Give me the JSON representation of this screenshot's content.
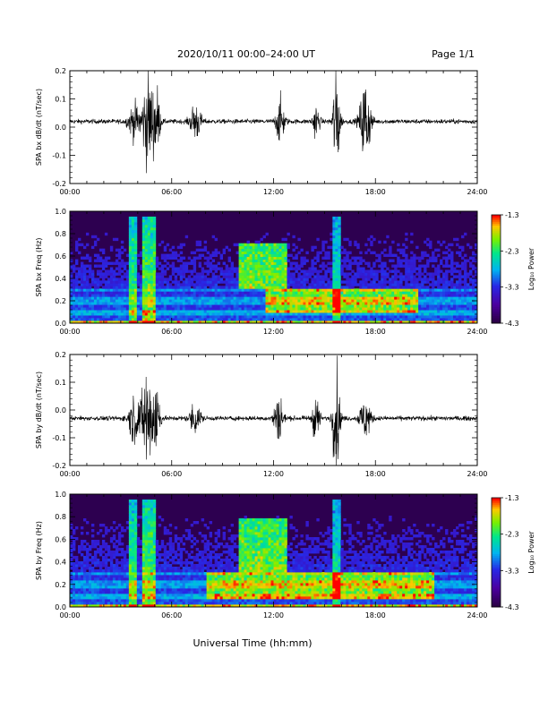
{
  "header": {
    "title": "2020/10/11  00:00–24:00 UT",
    "page": "Page 1/1"
  },
  "xlabel": "Universal Time (hh:mm)",
  "colorbar": {
    "label": "Log₁₀ Power",
    "ticks": [
      "-1.3",
      "-2.3",
      "-3.3",
      "-4.3"
    ],
    "range": [
      -4.3,
      -1.3
    ]
  },
  "chart_data": [
    {
      "type": "line",
      "ylabel": "SPA bx dB/dt (nT/sec)",
      "xlim": [
        0,
        24
      ],
      "ylim": [
        -0.2,
        0.2
      ],
      "xticks": [
        "00:00",
        "06:00",
        "12:00",
        "18:00",
        "24:00"
      ],
      "yticks": [
        "0.2",
        "0.1",
        "0.0",
        "-0.1",
        "-0.2"
      ],
      "baseline": 0.02,
      "noise": 0.008,
      "bursts": [
        {
          "t": 3.8,
          "amp": 0.06,
          "w": 0.35
        },
        {
          "t": 4.6,
          "amp": 0.16,
          "w": 0.35
        },
        {
          "t": 5.1,
          "amp": 0.12,
          "w": 0.2
        },
        {
          "t": 7.4,
          "amp": 0.07,
          "w": 0.3
        },
        {
          "t": 12.4,
          "amp": 0.08,
          "w": 0.25
        },
        {
          "t": 14.5,
          "amp": 0.06,
          "w": 0.2
        },
        {
          "t": 15.7,
          "amp": 0.2,
          "w": 0.2
        },
        {
          "t": 17.4,
          "amp": 0.16,
          "w": 0.3
        }
      ]
    },
    {
      "type": "heatmap",
      "ylabel": "SPA bx Freq (Hz)",
      "xlim": [
        0,
        24
      ],
      "ylim": [
        0,
        1.0
      ],
      "xticks": [
        "00:00",
        "06:00",
        "12:00",
        "18:00",
        "24:00"
      ],
      "yticks": [
        "1.0",
        "0.8",
        "0.6",
        "0.4",
        "0.2",
        "0.0"
      ],
      "features": [
        {
          "t0": 3.5,
          "t1": 4.0,
          "f0": 0.0,
          "f1": 0.95,
          "level": 0.45
        },
        {
          "t0": 4.3,
          "t1": 5.0,
          "f0": 0.0,
          "f1": 0.95,
          "level": 0.5
        },
        {
          "t0": 10.0,
          "t1": 12.8,
          "f0": 0.3,
          "f1": 0.72,
          "level": 0.55
        },
        {
          "t0": 11.5,
          "t1": 20.5,
          "f0": 0.1,
          "f1": 0.3,
          "level": 0.5
        },
        {
          "t0": 0.0,
          "t1": 24.0,
          "f0": 0.0,
          "f1": 0.03,
          "level": 0.6
        },
        {
          "t0": 15.5,
          "t1": 16.0,
          "f0": 0.0,
          "f1": 0.95,
          "level": 0.35
        }
      ]
    },
    {
      "type": "line",
      "ylabel": "SPA by dB/dt (nT/sec)",
      "xlim": [
        0,
        24
      ],
      "ylim": [
        -0.2,
        0.2
      ],
      "xticks": [
        "00:00",
        "06:00",
        "12:00",
        "18:00",
        "24:00"
      ],
      "yticks": [
        "0.2",
        "0.1",
        "0.0",
        "-0.1",
        "-0.2"
      ],
      "baseline": -0.03,
      "noise": 0.008,
      "bursts": [
        {
          "t": 3.8,
          "amp": 0.08,
          "w": 0.35
        },
        {
          "t": 4.6,
          "amp": 0.2,
          "w": 0.35
        },
        {
          "t": 5.1,
          "amp": 0.15,
          "w": 0.2
        },
        {
          "t": 7.4,
          "amp": 0.06,
          "w": 0.3
        },
        {
          "t": 12.3,
          "amp": 0.1,
          "w": 0.25
        },
        {
          "t": 14.5,
          "amp": 0.08,
          "w": 0.2
        },
        {
          "t": 15.7,
          "amp": 0.2,
          "w": 0.2
        },
        {
          "t": 17.4,
          "amp": 0.08,
          "w": 0.3
        }
      ]
    },
    {
      "type": "heatmap",
      "ylabel": "SPA by Freq (Hz)",
      "xlim": [
        0,
        24
      ],
      "ylim": [
        0,
        1.0
      ],
      "xticks": [
        "00:00",
        "06:00",
        "12:00",
        "18:00",
        "24:00"
      ],
      "yticks": [
        "1.0",
        "0.8",
        "0.6",
        "0.4",
        "0.2",
        "0.0"
      ],
      "features": [
        {
          "t0": 3.5,
          "t1": 4.0,
          "f0": 0.0,
          "f1": 0.95,
          "level": 0.45
        },
        {
          "t0": 4.3,
          "t1": 5.0,
          "f0": 0.0,
          "f1": 0.95,
          "level": 0.5
        },
        {
          "t0": 10.0,
          "t1": 12.8,
          "f0": 0.3,
          "f1": 0.78,
          "level": 0.55
        },
        {
          "t0": 8.0,
          "t1": 21.5,
          "f0": 0.08,
          "f1": 0.32,
          "level": 0.5
        },
        {
          "t0": 0.0,
          "t1": 24.0,
          "f0": 0.0,
          "f1": 0.03,
          "level": 0.6
        },
        {
          "t0": 15.5,
          "t1": 16.0,
          "f0": 0.0,
          "f1": 0.95,
          "level": 0.35
        }
      ]
    }
  ]
}
